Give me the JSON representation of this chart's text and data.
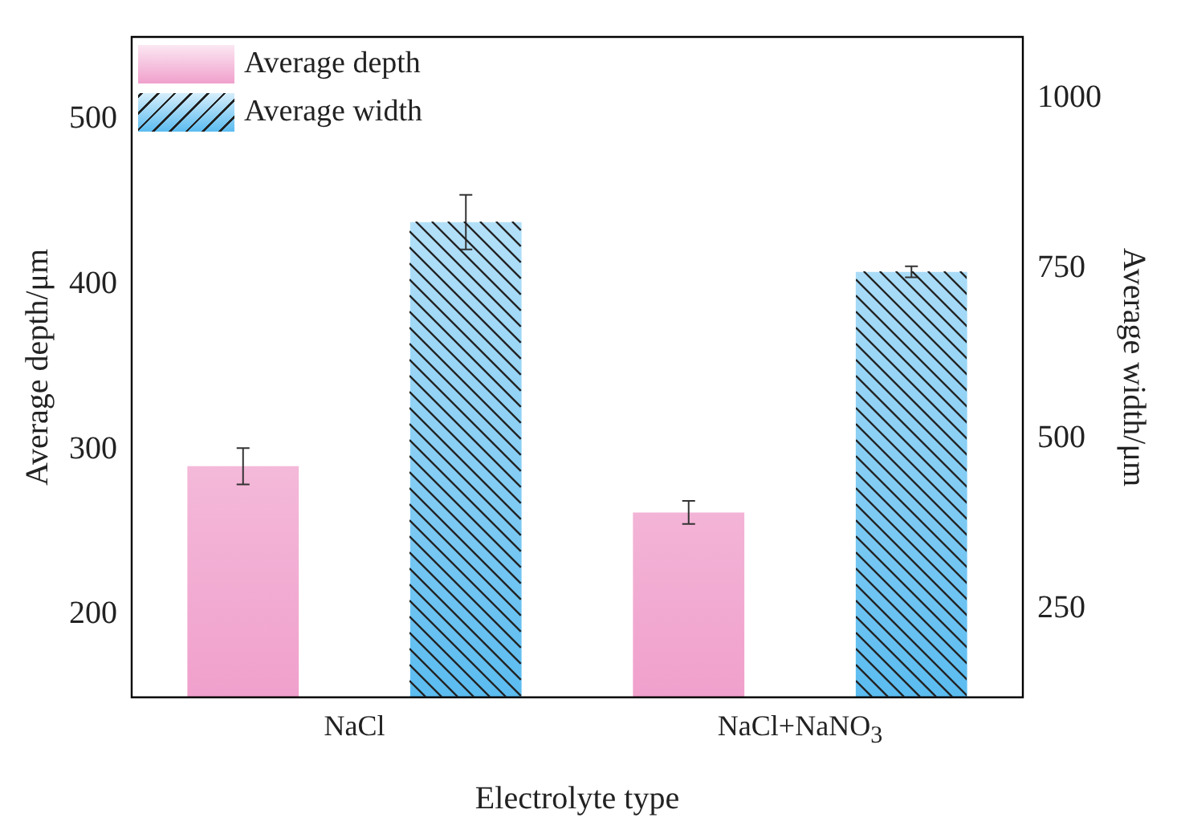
{
  "chart_data": {
    "type": "bar",
    "xlabel": "Electrolyte type",
    "ylabel": "Average depth/μm",
    "y2label": "Average width/μm",
    "categories": [
      "NaCl",
      "NaCl+NaNO$_{3}$"
    ],
    "series": [
      {
        "name": "Average depth",
        "color": "#f0a0cc",
        "values": [
          290,
          262
        ],
        "errors": [
          11,
          7
        ]
      },
      {
        "name": "Average width",
        "color": "#5bbcf0",
        "values": [
          818,
          745
        ],
        "errors": [
          40,
          8
        ],
        "axis": "y2"
      }
    ],
    "ylim": [
      150,
      550
    ],
    "yticks": [
      200,
      300,
      400,
      500
    ],
    "y2lim": [
      120,
      1090
    ],
    "y2ticks": [
      250,
      500,
      750,
      1000
    ],
    "legend": "top left",
    "grid": false
  }
}
